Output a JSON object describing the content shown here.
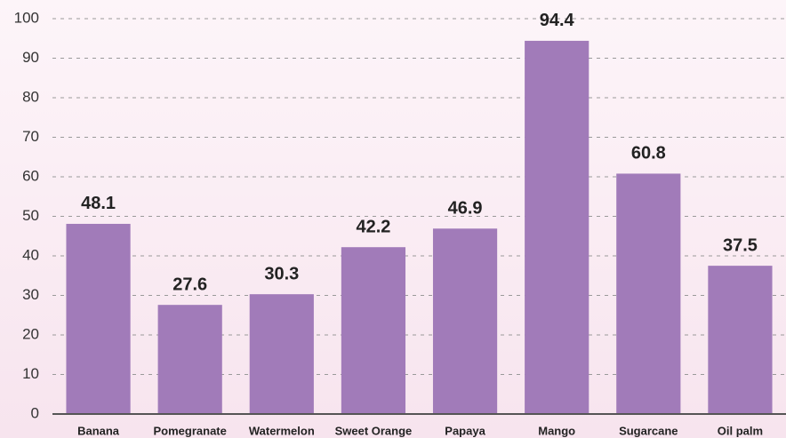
{
  "chart_data": {
    "type": "bar",
    "categories": [
      "Banana",
      "Pomegranate",
      "Watermelon",
      "Sweet Orange",
      "Papaya",
      "Mango",
      "Sugarcane",
      "Oil palm"
    ],
    "values": [
      48.1,
      27.6,
      30.3,
      42.2,
      46.9,
      94.4,
      60.8,
      37.5
    ],
    "color": "#a17bb9",
    "ylim": [
      0,
      100
    ],
    "yticks": [
      0,
      10,
      20,
      30,
      40,
      50,
      60,
      70,
      80,
      90,
      100
    ],
    "grid": true
  }
}
